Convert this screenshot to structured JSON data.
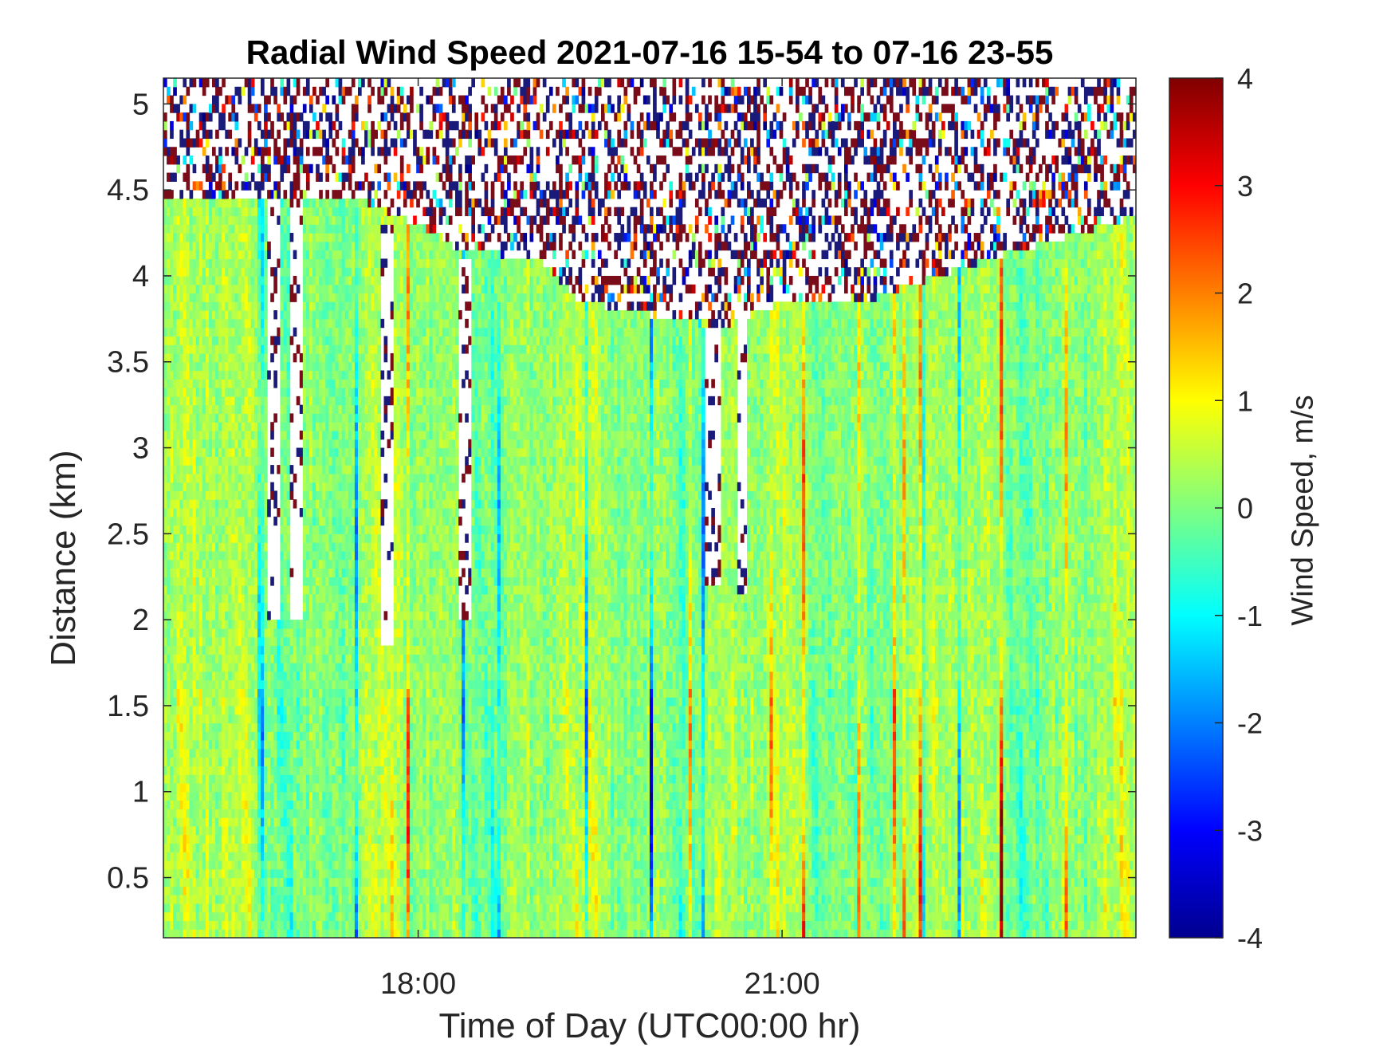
{
  "chart_data": {
    "type": "heatmap",
    "title": "Radial Wind Speed 2021-07-16 15-54 to 07-16 23-55",
    "xlabel": "Time of Day (UTC00:00 hr)",
    "ylabel": "Distance (km)",
    "xlim": [
      "15:54",
      "23:55"
    ],
    "ylim": [
      0.15,
      5.15
    ],
    "x_ticks": [
      "18:00",
      "21:00"
    ],
    "y_ticks": [
      0.5,
      1,
      1.5,
      2,
      2.5,
      3,
      3.5,
      4,
      4.5,
      5
    ],
    "colorbar": {
      "label": "Wind Speed, m/s",
      "colormap": "jet",
      "range": [
        -4,
        4
      ],
      "ticks": [
        -4,
        -3,
        -2,
        -1,
        0,
        1,
        2,
        3,
        4
      ]
    },
    "grid": false,
    "notes_visible": "noisy/invalid returns above ~4.4 km early and ~3.9 km mid-period; predominantly -1 to +1 m/s",
    "signal_ceiling_km": [
      {
        "time": "15:54",
        "ceiling": 4.45
      },
      {
        "time": "17:30",
        "ceiling": 4.45
      },
      {
        "time": "18:00",
        "ceiling": 4.3
      },
      {
        "time": "18:20",
        "ceiling": 4.15
      },
      {
        "time": "19:00",
        "ceiling": 4.1
      },
      {
        "time": "19:20",
        "ceiling": 3.85
      },
      {
        "time": "20:30",
        "ceiling": 3.7
      },
      {
        "time": "21:00",
        "ceiling": 3.85
      },
      {
        "time": "21:40",
        "ceiling": 3.85
      },
      {
        "time": "22:30",
        "ceiling": 4.05
      },
      {
        "time": "23:55",
        "ceiling": 4.35
      }
    ],
    "data_gaps": [
      {
        "from": "16:45",
        "to": "16:52",
        "top_km": 4.45,
        "bottom_km": 2.0
      },
      {
        "from": "16:57",
        "to": "17:03",
        "top_km": 4.45,
        "bottom_km": 2.0
      },
      {
        "from": "17:42",
        "to": "17:48",
        "top_km": 4.3,
        "bottom_km": 1.85
      },
      {
        "from": "18:20",
        "to": "18:26",
        "top_km": 4.1,
        "bottom_km": 2.0
      },
      {
        "from": "20:22",
        "to": "20:30",
        "top_km": 3.7,
        "bottom_km": 2.2
      },
      {
        "from": "20:38",
        "to": "20:42",
        "top_km": 3.75,
        "bottom_km": 2.15
      }
    ]
  }
}
